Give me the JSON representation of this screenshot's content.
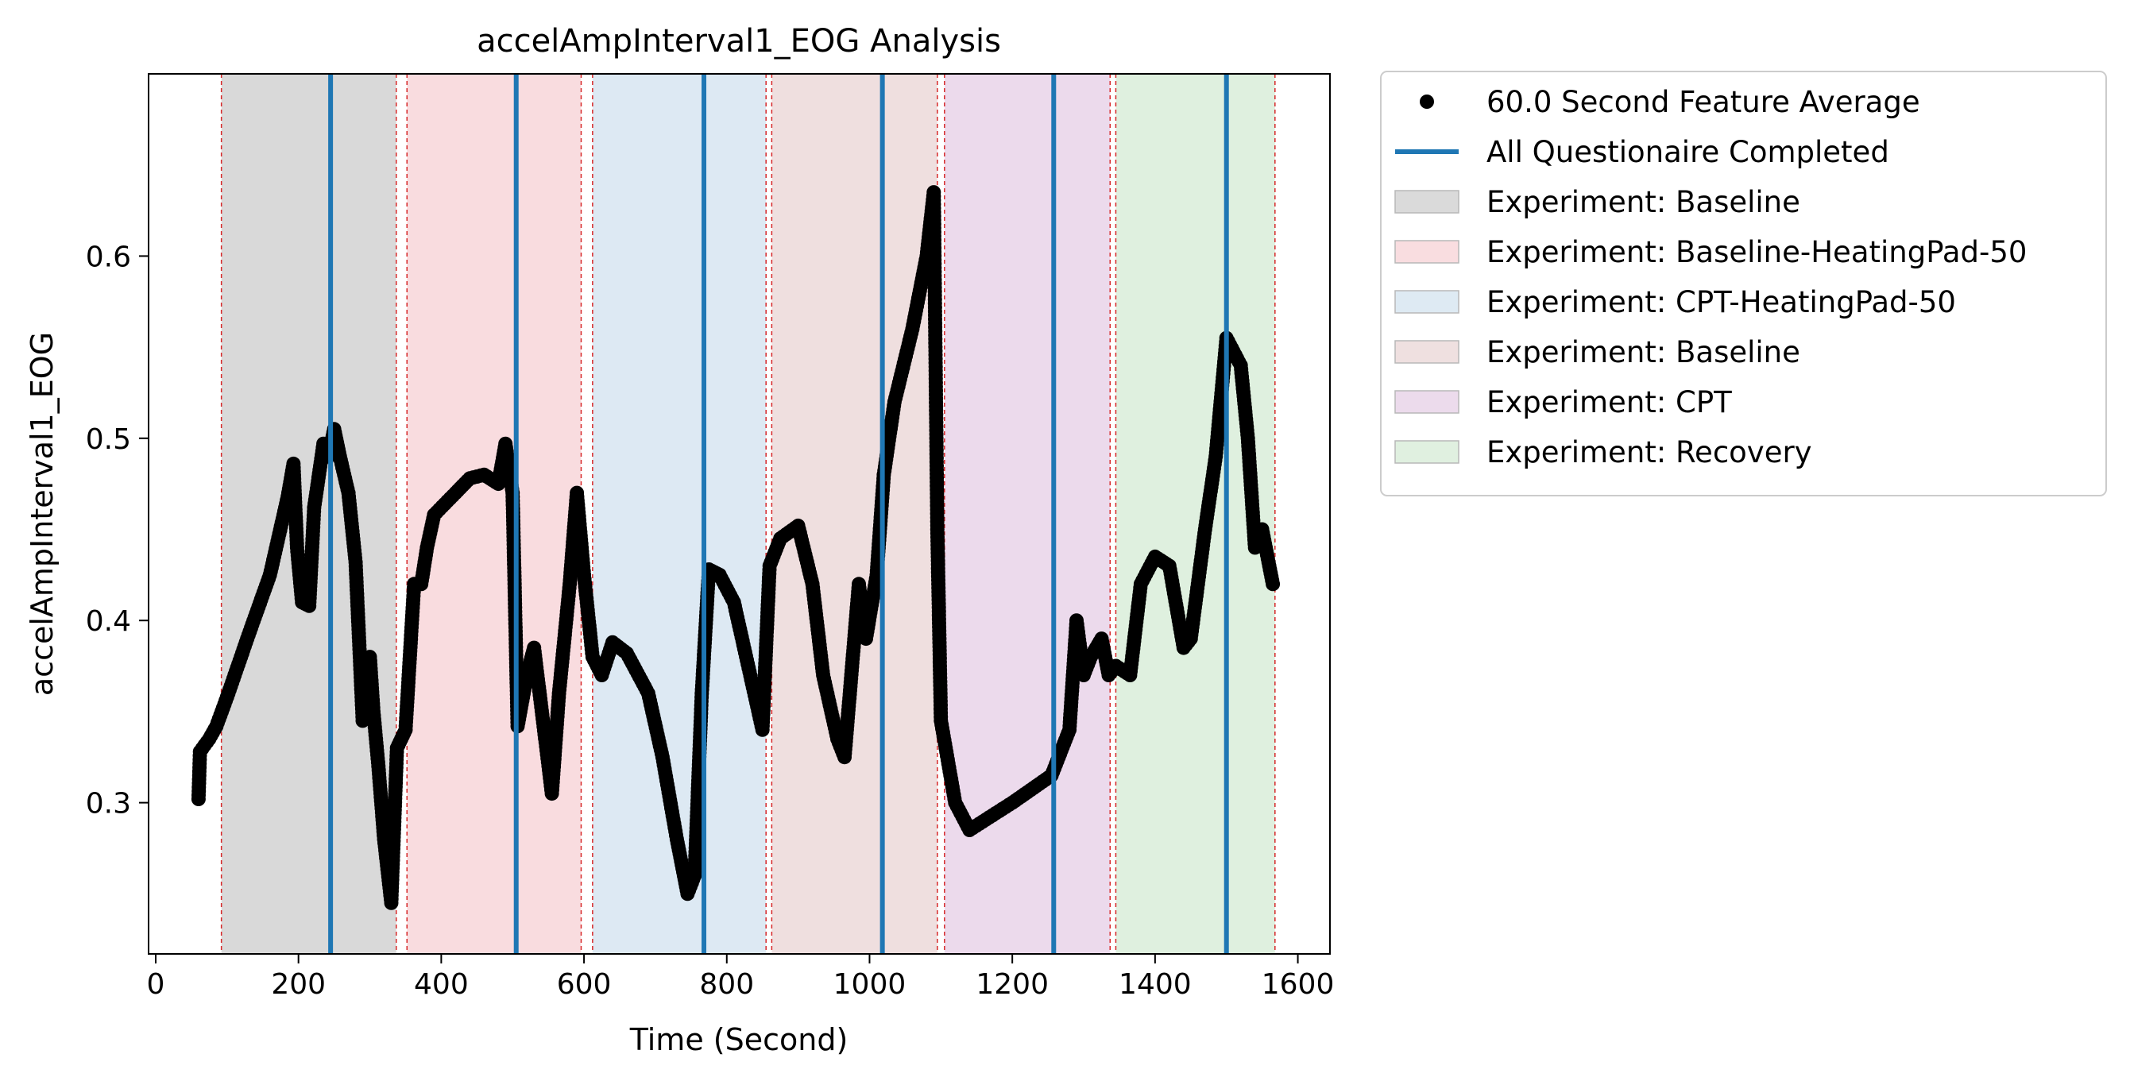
{
  "chart_data": {
    "type": "scatter",
    "title": "accelAmpInterval1_EOG Analysis",
    "xlabel": "Time (Second)",
    "ylabel": "accelAmpInterval1_EOG",
    "xlim": [
      -10,
      1645
    ],
    "ylim": [
      0.217,
      0.7
    ],
    "xticks": [
      0,
      200,
      400,
      600,
      800,
      1000,
      1200,
      1400,
      1600
    ],
    "xtick_labels": [
      "0",
      "200",
      "400",
      "600",
      "800",
      "1000",
      "1200",
      "1400",
      "1600"
    ],
    "yticks": [
      0.3,
      0.4,
      0.5,
      0.6
    ],
    "ytick_labels": [
      "0.3",
      "0.4",
      "0.5",
      "0.6"
    ],
    "grid": false,
    "legend_position": "outside-right-top",
    "legend": [
      {
        "label": "60.0 Second Feature Average",
        "kind": "marker",
        "color": "#000000"
      },
      {
        "label": "All Questionaire Completed",
        "kind": "line",
        "color": "#1f77b4"
      },
      {
        "label": "Experiment: Baseline",
        "kind": "patch",
        "color": "#d9d9d9"
      },
      {
        "label": "Experiment: Baseline-HeatingPad-50",
        "kind": "patch",
        "color": "#f9dcdf"
      },
      {
        "label": "Experiment: CPT-HeatingPad-50",
        "kind": "patch",
        "color": "#dde9f3"
      },
      {
        "label": "Experiment: Baseline",
        "kind": "patch",
        "color": "#efdfdf"
      },
      {
        "label": "Experiment: CPT",
        "kind": "patch",
        "color": "#ecdaec"
      },
      {
        "label": "Experiment: Recovery",
        "kind": "patch",
        "color": "#dff0df"
      }
    ],
    "regions": [
      {
        "start": 92,
        "end": 337,
        "color": "#d9d9d9"
      },
      {
        "start": 352,
        "end": 596,
        "color": "#f9dcdf"
      },
      {
        "start": 612,
        "end": 855,
        "color": "#dde9f3"
      },
      {
        "start": 863,
        "end": 1095,
        "color": "#efdfdf"
      },
      {
        "start": 1105,
        "end": 1337,
        "color": "#ecdaec"
      },
      {
        "start": 1345,
        "end": 1568,
        "color": "#dff0df"
      }
    ],
    "boundary_lines": [
      92,
      337,
      352,
      596,
      612,
      855,
      863,
      1095,
      1105,
      1337,
      1345,
      1568
    ],
    "questionnaire_completed": [
      245,
      505,
      768,
      1018,
      1258,
      1500
    ],
    "anchors": [
      [
        60,
        0.302
      ],
      [
        62,
        0.328
      ],
      [
        75,
        0.335
      ],
      [
        85,
        0.342
      ],
      [
        100,
        0.358
      ],
      [
        130,
        0.392
      ],
      [
        160,
        0.425
      ],
      [
        185,
        0.468
      ],
      [
        193,
        0.486
      ],
      [
        198,
        0.44
      ],
      [
        205,
        0.41
      ],
      [
        215,
        0.408
      ],
      [
        222,
        0.462
      ],
      [
        235,
        0.497
      ],
      [
        242,
        0.49
      ],
      [
        250,
        0.505
      ],
      [
        258,
        0.49
      ],
      [
        270,
        0.47
      ],
      [
        280,
        0.432
      ],
      [
        290,
        0.345
      ],
      [
        296,
        0.37
      ],
      [
        300,
        0.38
      ],
      [
        305,
        0.35
      ],
      [
        312,
        0.32
      ],
      [
        320,
        0.28
      ],
      [
        330,
        0.245
      ],
      [
        338,
        0.33
      ],
      [
        350,
        0.34
      ],
      [
        362,
        0.42
      ],
      [
        372,
        0.42
      ],
      [
        380,
        0.44
      ],
      [
        390,
        0.458
      ],
      [
        420,
        0.47
      ],
      [
        440,
        0.478
      ],
      [
        460,
        0.48
      ],
      [
        480,
        0.475
      ],
      [
        490,
        0.497
      ],
      [
        500,
        0.47
      ],
      [
        507,
        0.342
      ],
      [
        520,
        0.37
      ],
      [
        530,
        0.385
      ],
      [
        555,
        0.305
      ],
      [
        565,
        0.36
      ],
      [
        580,
        0.42
      ],
      [
        590,
        0.47
      ],
      [
        600,
        0.425
      ],
      [
        612,
        0.38
      ],
      [
        625,
        0.37
      ],
      [
        640,
        0.388
      ],
      [
        660,
        0.382
      ],
      [
        690,
        0.36
      ],
      [
        710,
        0.325
      ],
      [
        730,
        0.28
      ],
      [
        745,
        0.25
      ],
      [
        755,
        0.26
      ],
      [
        765,
        0.36
      ],
      [
        775,
        0.428
      ],
      [
        790,
        0.425
      ],
      [
        810,
        0.41
      ],
      [
        850,
        0.34
      ],
      [
        860,
        0.43
      ],
      [
        875,
        0.445
      ],
      [
        900,
        0.452
      ],
      [
        920,
        0.42
      ],
      [
        935,
        0.37
      ],
      [
        955,
        0.335
      ],
      [
        965,
        0.325
      ],
      [
        985,
        0.42
      ],
      [
        995,
        0.39
      ],
      [
        1010,
        0.425
      ],
      [
        1020,
        0.48
      ],
      [
        1035,
        0.52
      ],
      [
        1060,
        0.56
      ],
      [
        1080,
        0.6
      ],
      [
        1090,
        0.635
      ],
      [
        1095,
        0.45
      ],
      [
        1100,
        0.345
      ],
      [
        1120,
        0.3
      ],
      [
        1140,
        0.285
      ],
      [
        1200,
        0.3
      ],
      [
        1255,
        0.315
      ],
      [
        1265,
        0.325
      ],
      [
        1280,
        0.34
      ],
      [
        1290,
        0.4
      ],
      [
        1300,
        0.37
      ],
      [
        1310,
        0.38
      ],
      [
        1325,
        0.39
      ],
      [
        1335,
        0.37
      ],
      [
        1345,
        0.375
      ],
      [
        1365,
        0.37
      ],
      [
        1380,
        0.42
      ],
      [
        1400,
        0.435
      ],
      [
        1420,
        0.43
      ],
      [
        1440,
        0.385
      ],
      [
        1450,
        0.39
      ],
      [
        1470,
        0.45
      ],
      [
        1485,
        0.49
      ],
      [
        1500,
        0.555
      ],
      [
        1520,
        0.54
      ],
      [
        1530,
        0.5
      ],
      [
        1540,
        0.44
      ],
      [
        1550,
        0.45
      ],
      [
        1560,
        0.43
      ],
      [
        1565,
        0.42
      ]
    ]
  }
}
